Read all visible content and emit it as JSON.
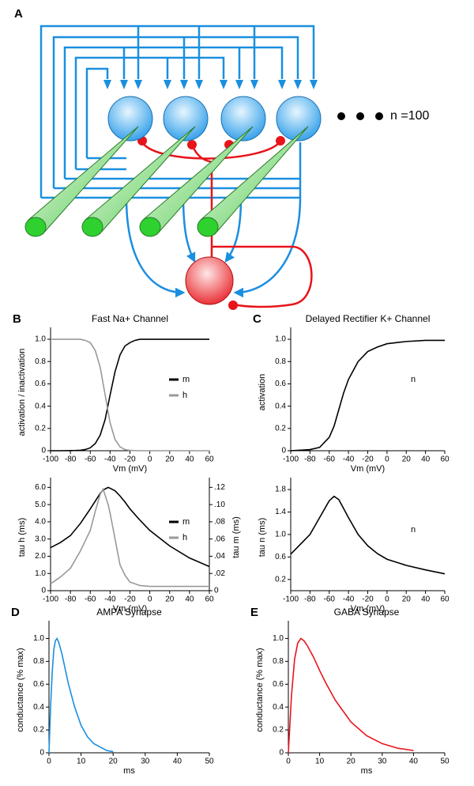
{
  "figure": {
    "panel_label": "A",
    "network_note": "n =100"
  },
  "chart_data": [
    {
      "type": "line",
      "label": "B",
      "title": "Fast Na+ Channel",
      "xlabel": "Vm (mV)",
      "ylabel": "activation / inactivation",
      "x": [
        -100,
        -90,
        -80,
        -75,
        -70,
        -65,
        -60,
        -55,
        -50,
        -45,
        -40,
        -35,
        -30,
        -25,
        -20,
        -15,
        -10,
        0,
        20,
        40,
        60
      ],
      "series": [
        {
          "name": "m",
          "color": "#000000",
          "values": [
            0,
            0,
            0.001,
            0.002,
            0.004,
            0.011,
            0.026,
            0.064,
            0.14,
            0.28,
            0.5,
            0.71,
            0.86,
            0.94,
            0.97,
            0.99,
            1.0,
            1.0,
            1.0,
            1.0,
            1.0
          ]
        },
        {
          "name": "h",
          "color": "#999999",
          "values": [
            1.0,
            1.0,
            1.0,
            1.0,
            1.0,
            0.99,
            0.97,
            0.9,
            0.75,
            0.5,
            0.25,
            0.1,
            0.035,
            0.01,
            0.003,
            0.001,
            0,
            0,
            0,
            0,
            0
          ]
        }
      ],
      "xlim": [
        -100,
        60
      ],
      "xticks": [
        -100,
        -80,
        -60,
        -40,
        -20,
        0,
        20,
        40,
        60
      ],
      "ylim": [
        0,
        1.05
      ],
      "yticks": [
        0,
        0.2,
        0.4,
        0.6,
        0.8,
        {
          "value": 1,
          "label": "1.0"
        }
      ],
      "legend": "upper right",
      "legend_marker": true
    },
    {
      "type": "line",
      "xlabel": "Vm (mV)",
      "ylabel": "tau h (ms)",
      "y2label": "tau m (ms)",
      "x": [
        -100,
        -90,
        -80,
        -70,
        -60,
        -55,
        -50,
        -47,
        -42,
        -40,
        -35,
        -30,
        -25,
        -20,
        -10,
        0,
        20,
        40,
        60
      ],
      "series": [
        {
          "name": "m",
          "color": "#000000",
          "axis": "y2",
          "values": [
            0.05,
            0.056,
            0.064,
            0.078,
            0.095,
            0.104,
            0.113,
            0.117,
            0.12,
            0.119,
            0.116,
            0.11,
            0.103,
            0.095,
            0.082,
            0.07,
            0.052,
            0.038,
            0.028
          ]
        },
        {
          "name": "h",
          "color": "#999999",
          "values": [
            0.4,
            0.8,
            1.3,
            2.3,
            3.5,
            4.6,
            5.6,
            5.9,
            5.0,
            4.5,
            3.0,
            1.5,
            0.9,
            0.5,
            0.3,
            0.25,
            0.25,
            0.25,
            0.25
          ]
        }
      ],
      "xlim": [
        -100,
        60
      ],
      "xticks": [
        -100,
        -80,
        -60,
        -40,
        -20,
        0,
        20,
        40,
        60
      ],
      "ylim": [
        0,
        6.2
      ],
      "yticks": [
        0,
        {
          "value": 1,
          "label": "1.0"
        },
        {
          "value": 2,
          "label": "2.0"
        },
        {
          "value": 3,
          "label": "3.0"
        },
        {
          "value": 4,
          "label": "4.0"
        },
        {
          "value": 5,
          "label": "5.0"
        },
        {
          "value": 6,
          "label": "6.0"
        }
      ],
      "y2lim": [
        0,
        0.124
      ],
      "y2ticks": [
        0,
        {
          "value": 0.02,
          "label": ".02"
        },
        {
          "value": 0.04,
          "label": ".04"
        },
        {
          "value": 0.06,
          "label": ".06"
        },
        {
          "value": 0.08,
          "label": ".08"
        },
        {
          "value": 0.1,
          "label": ".10"
        },
        {
          "value": 0.12,
          "label": ".12"
        }
      ],
      "legend": "upper right",
      "legend_marker": true
    },
    {
      "type": "line",
      "label": "C",
      "title": "Delayed Rectifier K+ Channel",
      "xlabel": "Vm (mV)",
      "ylabel": "activation",
      "x": [
        -100,
        -80,
        -70,
        -60,
        -55,
        -50,
        -45,
        -40,
        -30,
        -20,
        -10,
        0,
        20,
        40,
        60
      ],
      "series": [
        {
          "name": "n",
          "color": "#000000",
          "values": [
            0,
            0.01,
            0.03,
            0.12,
            0.22,
            0.37,
            0.52,
            0.64,
            0.8,
            0.89,
            0.93,
            0.96,
            0.98,
            0.99,
            0.99
          ]
        }
      ],
      "xlim": [
        -100,
        60
      ],
      "xticks": [
        -100,
        -80,
        -60,
        -40,
        -20,
        0,
        20,
        40,
        60
      ],
      "ylim": [
        0,
        1.05
      ],
      "yticks": [
        0,
        0.2,
        0.4,
        0.6,
        0.8,
        {
          "value": 1,
          "label": "1.0"
        }
      ],
      "legend": "upper right",
      "legend_marker": false
    },
    {
      "type": "line",
      "xlabel": "Vm (mV)",
      "ylabel": "tau n (ms)",
      "x": [
        -100,
        -80,
        -70,
        -60,
        -55,
        -50,
        -40,
        -30,
        -20,
        -10,
        0,
        20,
        40,
        60
      ],
      "series": [
        {
          "name": "n",
          "color": "#000000",
          "values": [
            0.65,
            1.0,
            1.3,
            1.6,
            1.68,
            1.62,
            1.3,
            1.0,
            0.8,
            0.66,
            0.56,
            0.45,
            0.37,
            0.3
          ]
        }
      ],
      "xlim": [
        -100,
        60
      ],
      "xticks": [
        -100,
        -80,
        -60,
        -40,
        -20,
        0,
        20,
        40,
        60
      ],
      "ylim": [
        0,
        1.9
      ],
      "yticks": [
        0.2,
        0.6,
        {
          "value": 1,
          "label": "1.0"
        },
        1.4,
        1.8
      ],
      "legend": "upper right",
      "legend_marker": false
    },
    {
      "type": "line",
      "label": "D",
      "title": "AMPA Synapse",
      "xlabel": "ms",
      "ylabel": "conductance (% max)",
      "x": [
        0,
        0.5,
        1,
        1.5,
        2,
        2.5,
        3,
        4,
        5,
        6,
        8,
        10,
        12,
        14,
        16,
        18,
        20
      ],
      "series": [
        {
          "color": "#1a8fe0",
          "values": [
            0,
            0.4,
            0.7,
            0.9,
            0.98,
            1.0,
            0.97,
            0.87,
            0.74,
            0.61,
            0.4,
            0.24,
            0.14,
            0.08,
            0.05,
            0.02,
            0.01
          ]
        }
      ],
      "xlim": [
        0,
        50
      ],
      "xticks": [
        0,
        10,
        20,
        30,
        40,
        50
      ],
      "ylim": [
        0,
        1.1
      ],
      "yticks": [
        0,
        0.2,
        0.4,
        0.6,
        0.8,
        {
          "value": 1,
          "label": "1.0"
        }
      ]
    },
    {
      "type": "line",
      "label": "E",
      "title": "GABA Synapse",
      "xlabel": "ms",
      "ylabel": "conductance (% max)",
      "x": [
        0,
        1,
        2,
        3,
        4,
        5,
        6,
        8,
        10,
        12,
        15,
        20,
        25,
        30,
        35,
        40
      ],
      "series": [
        {
          "color": "#e8141a",
          "values": [
            0,
            0.5,
            0.82,
            0.96,
            1.0,
            0.98,
            0.94,
            0.84,
            0.72,
            0.61,
            0.46,
            0.27,
            0.15,
            0.08,
            0.04,
            0.02
          ]
        }
      ],
      "xlim": [
        0,
        50
      ],
      "xticks": [
        0,
        10,
        20,
        30,
        40,
        50
      ],
      "ylim": [
        0,
        1.1
      ],
      "yticks": [
        0,
        0.2,
        0.4,
        0.6,
        0.8,
        {
          "value": 1,
          "label": "1.0"
        }
      ]
    }
  ]
}
